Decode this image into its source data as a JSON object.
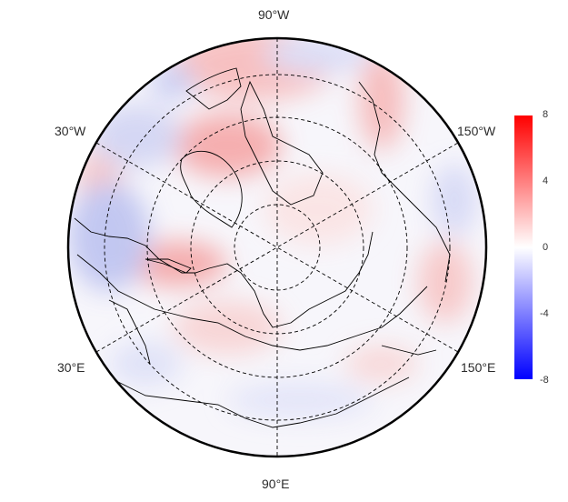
{
  "map": {
    "projection": "north-polar-stereographic",
    "longitude_labels": {
      "top": "90°W",
      "upper_left": "30°W",
      "upper_right": "150°W",
      "lower_left": "30°E",
      "lower_right": "150°E",
      "bottom": "90°E"
    },
    "graticule": "dashed",
    "coastlines": true,
    "country_borders": true
  },
  "colorbar": {
    "ticks": [
      "8",
      "4",
      "0",
      "-4",
      "-8"
    ],
    "min": -8,
    "max": 8,
    "colors": {
      "high": "#ff0000",
      "mid": "#ffffff",
      "low": "#0000ff"
    }
  }
}
